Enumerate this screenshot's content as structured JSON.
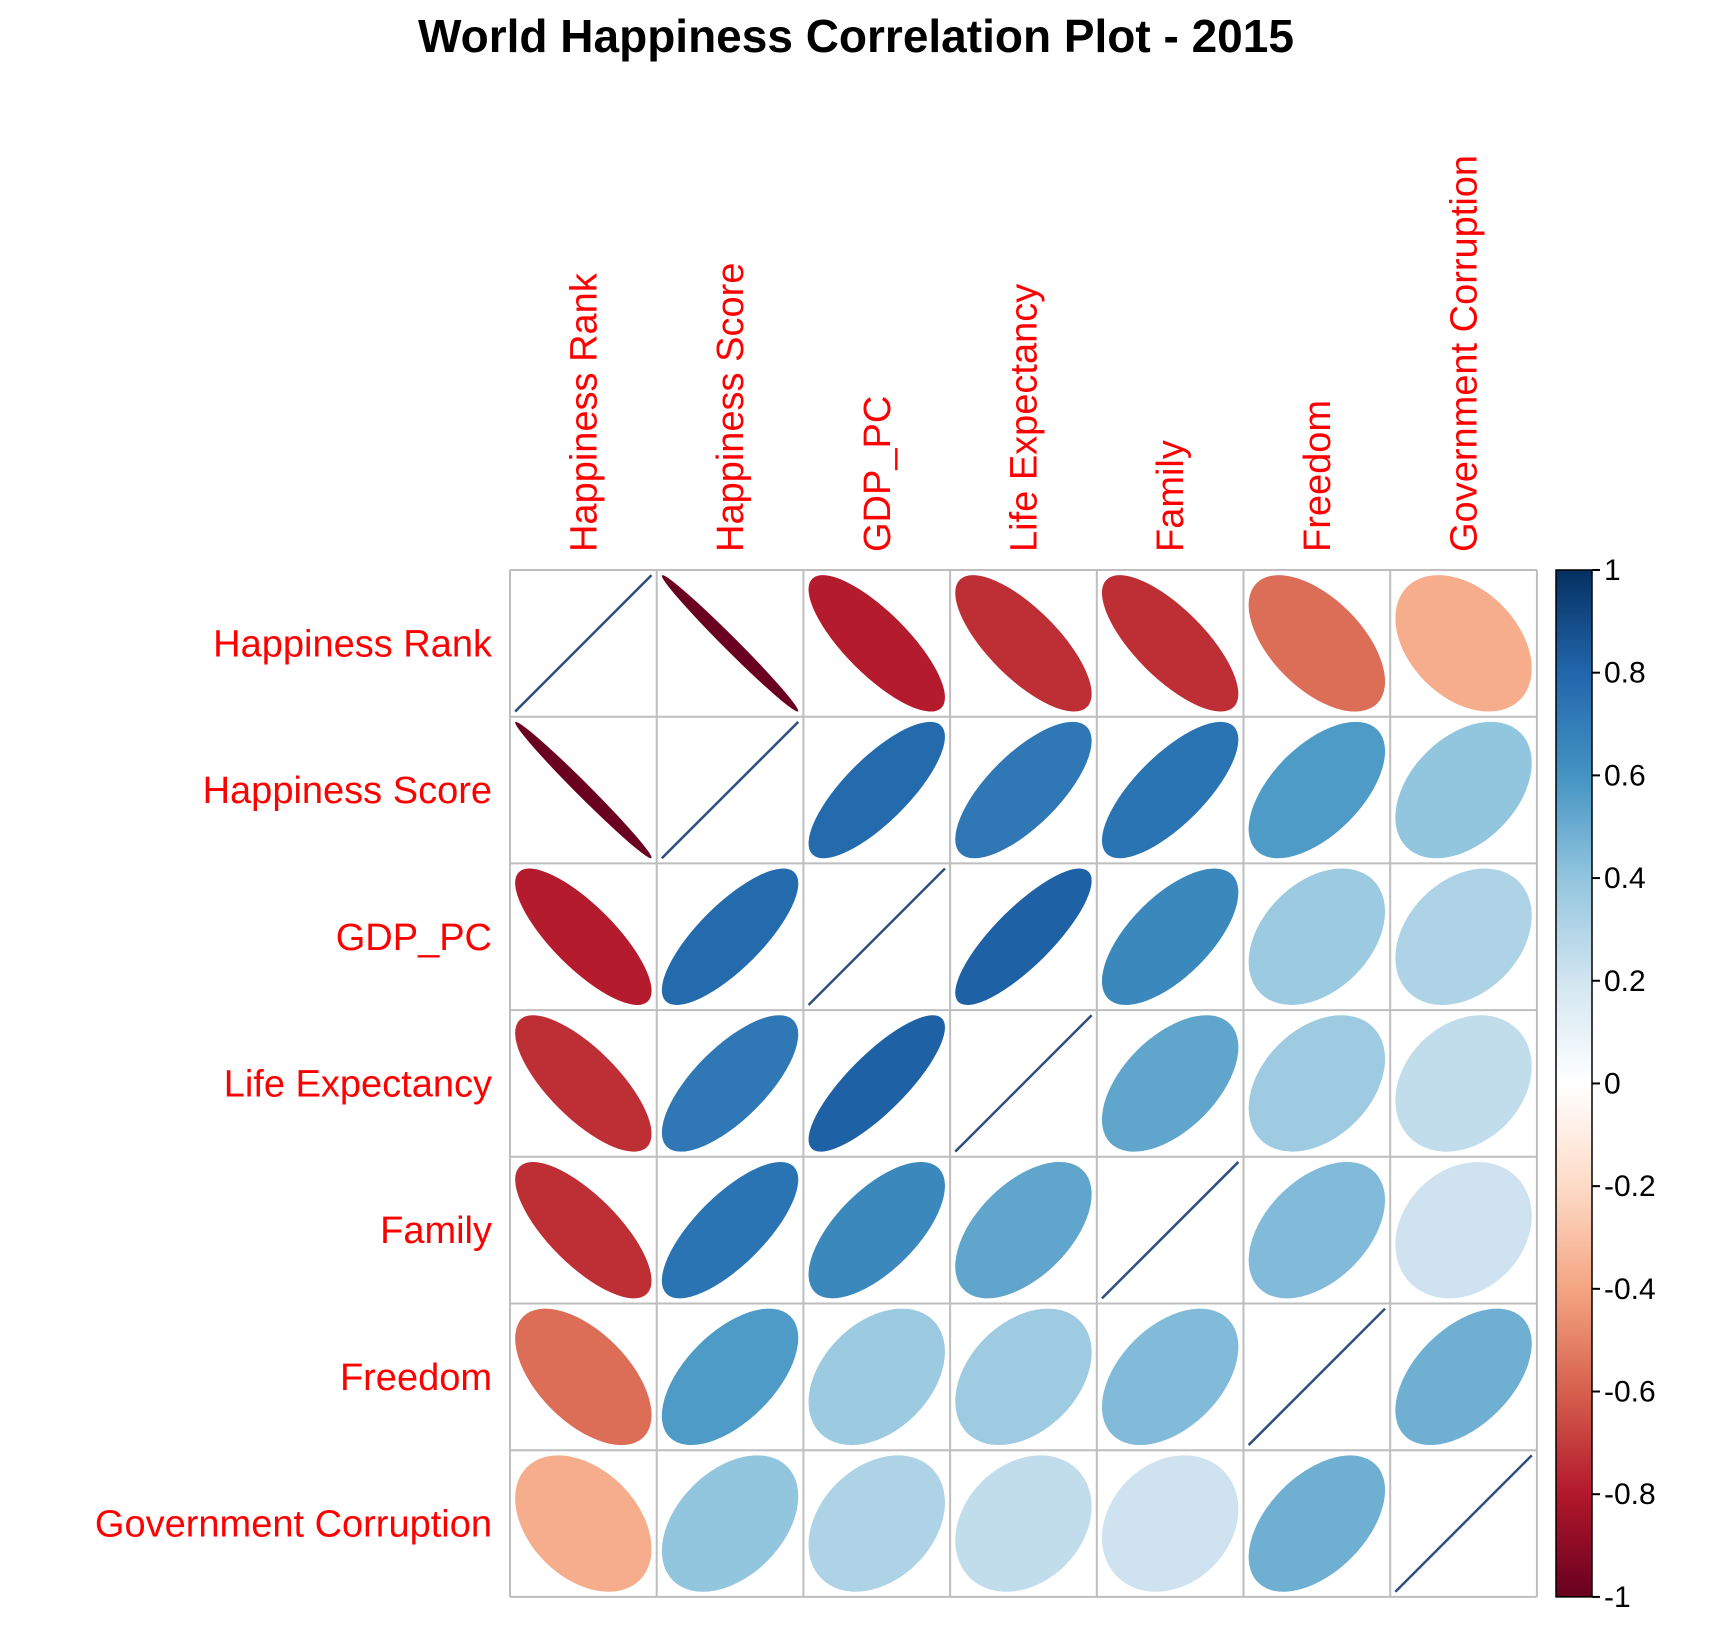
{
  "chart_data": {
    "type": "heatmap",
    "subtype": "correlation-ellipse",
    "title": "World Happiness Correlation Plot - 2015",
    "variables": [
      "Happiness Rank",
      "Happiness Score",
      "GDP_PC",
      "Life Expectancy",
      "Family",
      "Freedom",
      "Government Corruption"
    ],
    "matrix": [
      [
        1.0,
        -0.99,
        -0.79,
        -0.74,
        -0.74,
        -0.56,
        -0.37
      ],
      [
        -0.99,
        1.0,
        0.78,
        0.72,
        0.74,
        0.57,
        0.4
      ],
      [
        -0.79,
        0.78,
        1.0,
        0.82,
        0.65,
        0.37,
        0.31
      ],
      [
        -0.74,
        0.72,
        0.82,
        1.0,
        0.53,
        0.36,
        0.25
      ],
      [
        -0.74,
        0.74,
        0.65,
        0.53,
        1.0,
        0.44,
        0.21
      ],
      [
        -0.56,
        0.57,
        0.37,
        0.36,
        0.44,
        1.0,
        0.49
      ],
      [
        -0.37,
        0.4,
        0.31,
        0.25,
        0.21,
        0.49,
        1.0
      ]
    ],
    "colorbar": {
      "range": [
        -1,
        1
      ],
      "ticks": [
        "1",
        "0.8",
        "0.6",
        "0.4",
        "0.2",
        "0",
        "-0.2",
        "-0.4",
        "-0.6",
        "-0.8",
        "-1"
      ]
    },
    "label_color": "#ff0000",
    "grid": true
  }
}
